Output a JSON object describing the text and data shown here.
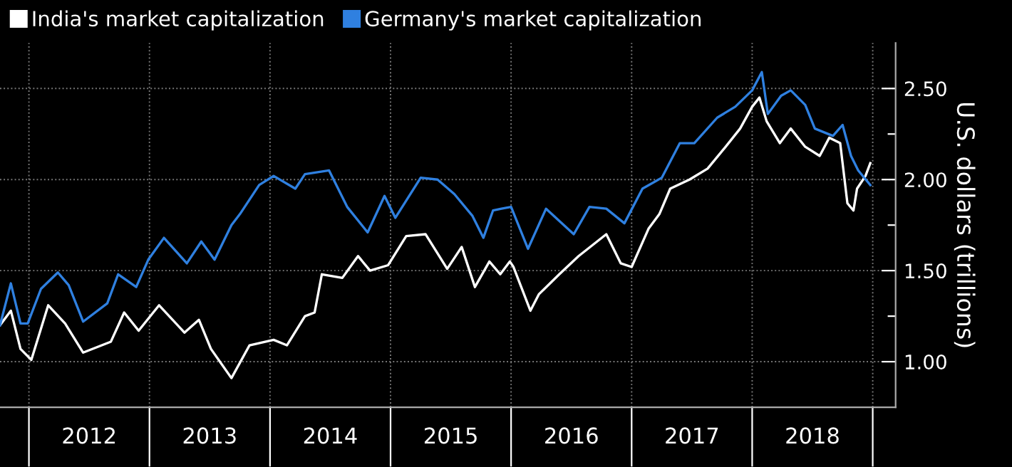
{
  "chart_data": {
    "type": "line",
    "ylabel": "U.S. dollars (trillions)",
    "ylim": [
      0.75,
      2.75
    ],
    "yticks": [
      {
        "value": 1.0,
        "label": "1.00"
      },
      {
        "value": 1.25,
        "label": null
      },
      {
        "value": 1.5,
        "label": "1.50"
      },
      {
        "value": 1.75,
        "label": null
      },
      {
        "value": 2.0,
        "label": "2.00"
      },
      {
        "value": 2.25,
        "label": null
      },
      {
        "value": 2.5,
        "label": "2.50"
      }
    ],
    "xlim": [
      2011.76,
      2019.19
    ],
    "xticks": [
      {
        "value": 2012,
        "label": null
      },
      {
        "value": 2012.5,
        "label": "2012"
      },
      {
        "value": 2013,
        "label": null
      },
      {
        "value": 2013.5,
        "label": "2013"
      },
      {
        "value": 2014,
        "label": null
      },
      {
        "value": 2014.5,
        "label": "2014"
      },
      {
        "value": 2015,
        "label": null
      },
      {
        "value": 2015.5,
        "label": "2015"
      },
      {
        "value": 2016,
        "label": null
      },
      {
        "value": 2016.5,
        "label": "2016"
      },
      {
        "value": 2017,
        "label": null
      },
      {
        "value": 2017.5,
        "label": "2017"
      },
      {
        "value": 2018,
        "label": null
      },
      {
        "value": 2018.5,
        "label": "2018"
      },
      {
        "value": 2019,
        "label": null
      }
    ],
    "grid": true,
    "legend": "top left",
    "marker": "none",
    "line_style": "solid",
    "series": [
      {
        "name": "India's market capitalization",
        "color": "#ffffff",
        "x": [
          2011.76,
          2011.85,
          2011.93,
          2012.02,
          2012.16,
          2012.3,
          2012.45,
          2012.68,
          2012.79,
          2012.91,
          2013.08,
          2013.29,
          2013.41,
          2013.51,
          2013.68,
          2013.83,
          2014.03,
          2014.14,
          2014.29,
          2014.37,
          2014.43,
          2014.6,
          2014.73,
          2014.83,
          2014.98,
          2015.13,
          2015.29,
          2015.47,
          2015.59,
          2015.7,
          2015.82,
          2015.91,
          2015.99,
          2016.02,
          2016.16,
          2016.23,
          2016.4,
          2016.56,
          2016.79,
          2016.91,
          2017.0,
          2017.14,
          2017.23,
          2017.32,
          2017.48,
          2017.63,
          2017.78,
          2017.9,
          2018.0,
          2018.06,
          2018.12,
          2018.23,
          2018.32,
          2018.44,
          2018.56,
          2018.64,
          2018.73,
          2018.79,
          2018.84,
          2018.87,
          2018.94,
          2018.98
        ],
        "values": [
          1.2,
          1.28,
          1.07,
          1.01,
          1.31,
          1.21,
          1.05,
          1.11,
          1.27,
          1.17,
          1.31,
          1.16,
          1.23,
          1.07,
          0.91,
          1.09,
          1.12,
          1.09,
          1.25,
          1.27,
          1.48,
          1.46,
          1.58,
          1.5,
          1.53,
          1.69,
          1.7,
          1.51,
          1.63,
          1.41,
          1.55,
          1.48,
          1.55,
          1.52,
          1.28,
          1.37,
          1.48,
          1.58,
          1.7,
          1.54,
          1.52,
          1.73,
          1.81,
          1.95,
          2.0,
          2.06,
          2.18,
          2.28,
          2.4,
          2.45,
          2.32,
          2.2,
          2.28,
          2.18,
          2.13,
          2.23,
          2.2,
          1.87,
          1.83,
          1.95,
          2.02,
          2.09
        ]
      },
      {
        "name": "Germany's market capitalization",
        "color": "#2f80e0",
        "x": [
          2011.76,
          2011.85,
          2011.93,
          2011.99,
          2012.1,
          2012.24,
          2012.33,
          2012.45,
          2012.65,
          2012.74,
          2012.89,
          2012.99,
          2013.12,
          2013.31,
          2013.43,
          2013.54,
          2013.68,
          2013.75,
          2013.91,
          2014.03,
          2014.21,
          2014.29,
          2014.49,
          2014.64,
          2014.81,
          2014.95,
          2015.04,
          2015.25,
          2015.39,
          2015.53,
          2015.68,
          2015.77,
          2015.85,
          2015.92,
          2016.0,
          2016.14,
          2016.29,
          2016.52,
          2016.65,
          2016.79,
          2016.94,
          2017.09,
          2017.25,
          2017.4,
          2017.52,
          2017.71,
          2017.86,
          2018.0,
          2018.08,
          2018.13,
          2018.24,
          2018.32,
          2018.44,
          2018.52,
          2018.67,
          2018.75,
          2018.82,
          2018.88,
          2018.98
        ],
        "values": [
          1.2,
          1.43,
          1.21,
          1.21,
          1.4,
          1.49,
          1.42,
          1.22,
          1.32,
          1.48,
          1.41,
          1.56,
          1.68,
          1.54,
          1.66,
          1.56,
          1.75,
          1.81,
          1.97,
          2.02,
          1.95,
          2.03,
          2.05,
          1.85,
          1.71,
          1.91,
          1.79,
          2.01,
          2.0,
          1.92,
          1.8,
          1.68,
          1.83,
          1.84,
          1.85,
          1.62,
          1.84,
          1.7,
          1.85,
          1.84,
          1.76,
          1.95,
          2.01,
          2.2,
          2.2,
          2.34,
          2.4,
          2.49,
          2.59,
          2.36,
          2.46,
          2.49,
          2.41,
          2.28,
          2.24,
          2.3,
          2.13,
          2.05,
          1.97
        ]
      }
    ]
  }
}
